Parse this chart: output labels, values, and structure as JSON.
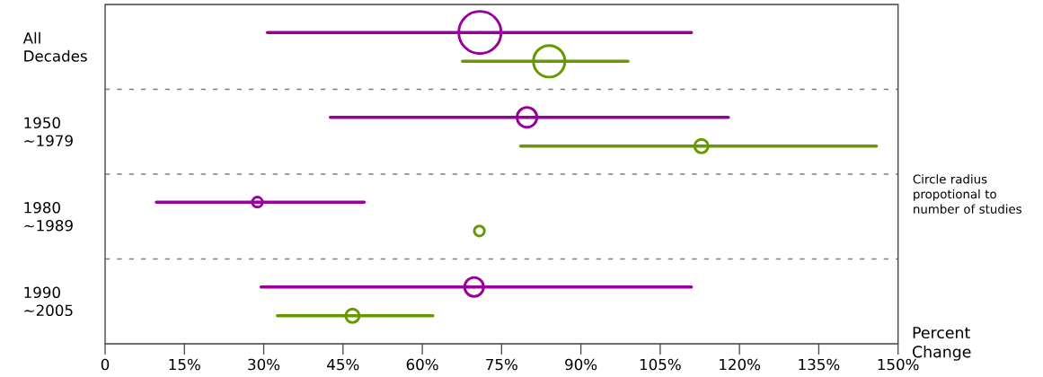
{
  "chart_data": {
    "type": "bubble",
    "orientation": "horizontal",
    "xlabel": "Percent Change",
    "categories": [
      "All Decades",
      "1950 ~1979",
      "1980 ~1989",
      "1990 ~2005"
    ],
    "series": [
      {
        "color": "#990099",
        "values": [
          70.9,
          79.8,
          28.8,
          69.8
        ],
        "sizes": [
          1,
          0.25,
          0.08,
          0.23
        ],
        "errors": [
          [
            30.7,
            110.9
          ],
          [
            42.6,
            117.9
          ],
          [
            9.7,
            49.0
          ],
          [
            29.5,
            110.9
          ]
        ]
      },
      {
        "color": "#669900",
        "values": [
          84.0,
          112.8,
          70.8,
          46.8
        ],
        "sizes": [
          0.58,
          0.13,
          0.08,
          0.13
        ],
        "errors": [
          [
            67.6,
            98.9
          ],
          [
            78.6,
            145.9
          ],
          null,
          [
            32.6,
            62.0
          ]
        ]
      }
    ],
    "xlim": [
      0,
      150
    ],
    "xticks": [
      0,
      {
        "value": 15,
        "label": "15%"
      },
      {
        "value": 30,
        "label": "30%"
      },
      {
        "value": 45,
        "label": "45%"
      },
      {
        "value": 60,
        "label": "60%"
      },
      {
        "value": 75,
        "label": "75%"
      },
      {
        "value": 90,
        "label": "90%"
      },
      {
        "value": 105,
        "label": "105%"
      },
      {
        "value": 120,
        "label": "120%"
      },
      {
        "value": 135,
        "label": "135%"
      },
      {
        "value": 150,
        "label": "150%"
      }
    ],
    "grid": "y",
    "marker": "circle",
    "annotations": [
      "Circle radius propotional to number of studies"
    ]
  }
}
